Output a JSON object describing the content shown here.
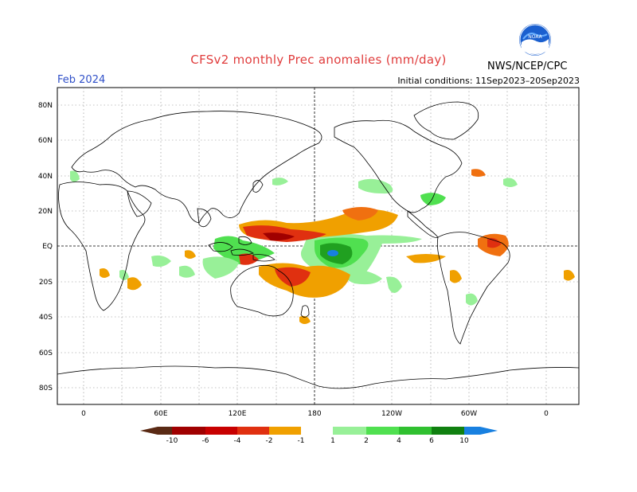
{
  "header": {
    "title": "CFSv2 monthly Prec anomalies (mm/day)",
    "month": "Feb 2024",
    "initial_conditions": "Initial conditions: 11Sep2023–20Sep2023",
    "agency": "NWS/NCEP/CPC",
    "logo_text": "NOAA"
  },
  "map": {
    "lat_labels": [
      "80N",
      "60N",
      "40N",
      "20N",
      "EQ",
      "20S",
      "40S",
      "60S",
      "80S"
    ],
    "lon_labels": [
      "0",
      "60E",
      "120E",
      "180",
      "120W",
      "60W",
      "0"
    ],
    "dry_color": "#e06018",
    "wet_color": "#30c030"
  },
  "colorbar": {
    "labels": [
      "-10",
      "-6",
      "-4",
      "-2",
      "-1",
      "1",
      "2",
      "4",
      "6",
      "10"
    ],
    "colors": [
      "#5a2a14",
      "#a00000",
      "#c80000",
      "#e03010",
      "#f07010",
      "#f0a000",
      "#ffffff",
      "#98f098",
      "#50e050",
      "#30c030",
      "#20a020",
      "#108010",
      "#1880e0"
    ]
  }
}
